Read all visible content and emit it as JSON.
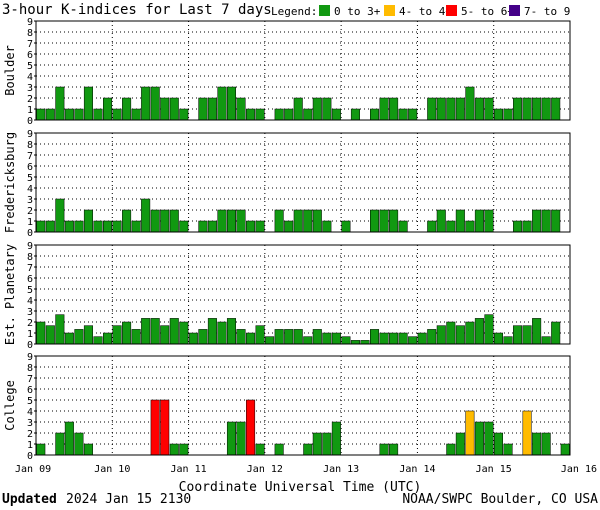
{
  "title": "3-hour K-indices for Last 7 days",
  "legend": {
    "label": "Legend:",
    "items": [
      {
        "label": "0 to 3+",
        "color": "#119911"
      },
      {
        "label": "4- to 4+",
        "color": "#ffbb00"
      },
      {
        "label": "5- to 6+",
        "color": "#ff0000"
      },
      {
        "label": "7- to 9",
        "color": "#440088"
      }
    ]
  },
  "xlabel": "Coordinate Universal Time (UTC)",
  "updated_label": "Updated",
  "updated_value": "2024 Jan 15 2130",
  "source": "NOAA/SWPC Boulder, CO USA",
  "chart_data": {
    "type": "bar",
    "x_ticks": [
      "Jan 09",
      "Jan 10",
      "Jan 11",
      "Jan 12",
      "Jan 13",
      "Jan 14",
      "Jan 15",
      "Jan 16"
    ],
    "ylim": [
      0,
      9
    ],
    "y_ticks": [
      0,
      1,
      2,
      3,
      4,
      5,
      6,
      7,
      8,
      9
    ],
    "grid": true,
    "bar_count": 56,
    "panels": [
      {
        "name": "Boulder",
        "values": [
          1,
          1,
          3,
          1,
          1,
          3,
          1,
          2,
          1,
          2,
          1,
          3,
          3,
          2,
          2,
          1,
          0,
          2,
          2,
          3,
          3,
          2,
          1,
          1,
          0,
          1,
          1,
          2,
          1,
          2,
          2,
          1,
          0,
          1,
          0,
          1,
          2,
          2,
          1,
          1,
          0,
          2,
          2,
          2,
          2,
          3,
          2,
          2,
          1,
          1,
          2,
          2,
          2,
          2,
          2,
          0
        ]
      },
      {
        "name": "Fredericksburg",
        "values": [
          1,
          1,
          3,
          1,
          1,
          2,
          1,
          1,
          1,
          2,
          1,
          3,
          2,
          2,
          2,
          1,
          0,
          1,
          1,
          2,
          2,
          2,
          1,
          1,
          0,
          2,
          1,
          2,
          2,
          2,
          1,
          0,
          1,
          0,
          0,
          2,
          2,
          2,
          1,
          0,
          0,
          1,
          2,
          1,
          2,
          1,
          2,
          2,
          0,
          0,
          1,
          1,
          2,
          2,
          2,
          0
        ]
      },
      {
        "name": "Est. Planetary",
        "values": [
          2,
          1.67,
          2.67,
          1,
          1.33,
          1.67,
          0.67,
          1,
          1.67,
          2,
          1.33,
          2.33,
          2.33,
          1.67,
          2.33,
          2,
          1,
          1.33,
          2.33,
          2,
          2.33,
          1.33,
          1,
          1.67,
          0.67,
          1.33,
          1.33,
          1.33,
          0.67,
          1.33,
          1,
          1,
          0.67,
          0.33,
          0.33,
          1.33,
          1,
          1,
          1,
          0.67,
          1,
          1.33,
          1.67,
          2,
          1.67,
          2,
          2.33,
          2.67,
          1,
          0.67,
          1.67,
          1.67,
          2.33,
          0.67,
          2,
          0
        ]
      },
      {
        "name": "College",
        "values": [
          1,
          0,
          2,
          3,
          2,
          1,
          0,
          0,
          0,
          0,
          0,
          0,
          5,
          5,
          1,
          1,
          0,
          0,
          0,
          0,
          3,
          3,
          5,
          1,
          0,
          1,
          0,
          0,
          1,
          2,
          2,
          3,
          0,
          0,
          0,
          0,
          1,
          1,
          0,
          0,
          0,
          0,
          0,
          1,
          2,
          4,
          3,
          3,
          2,
          1,
          0,
          4,
          2,
          2,
          0,
          1
        ]
      }
    ]
  }
}
